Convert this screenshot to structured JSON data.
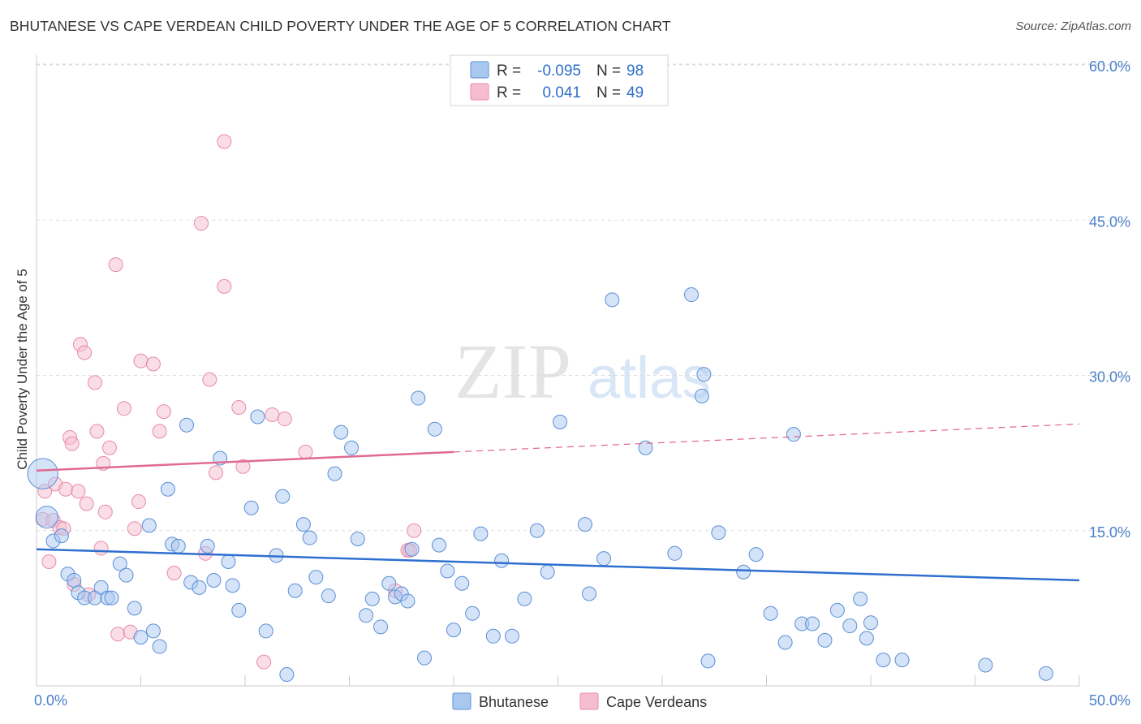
{
  "header": {
    "title": "BHUTANESE VS CAPE VERDEAN CHILD POVERTY UNDER THE AGE OF 5 CORRELATION CHART",
    "source": "Source: ZipAtlas.com"
  },
  "watermark": {
    "zip": "ZIP",
    "atlas": "atlas"
  },
  "legend": {
    "rows": [
      {
        "r_label": "R =",
        "r_value": "-0.095",
        "n_label": "N =",
        "n_value": "98"
      },
      {
        "r_label": "R =",
        "r_value": "0.041",
        "n_label": "N =",
        "n_value": "49"
      }
    ]
  },
  "bottom_legend": {
    "series1": "Bhutanese",
    "series2": "Cape Verdeans"
  },
  "colors": {
    "blue_fill": "#a9c8ef",
    "blue_stroke": "#5b8fd6",
    "blue_line": "#2e6fcf",
    "pink_fill": "#f6bdd0",
    "pink_stroke": "#e88aaa",
    "pink_line": "#e06a93",
    "tick": "#4a80c8",
    "grid": "#dddddd"
  },
  "chart_data": {
    "type": "scatter",
    "title": "BHUTANESE VS CAPE VERDEAN CHILD POVERTY UNDER THE AGE OF 5 CORRELATION CHART",
    "xlabel": "",
    "ylabel": "Child Poverty Under the Age of 5",
    "xlim": [
      0,
      50
    ],
    "ylim": [
      0,
      63
    ],
    "x_tick_labels": [
      "0.0%",
      "50.0%"
    ],
    "y_ticks": [
      15,
      30,
      45,
      60
    ],
    "y_tick_labels": [
      "15.0%",
      "30.0%",
      "45.0%",
      "60.0%"
    ],
    "series": [
      {
        "name": "Bhutanese",
        "r": -0.095,
        "n": 98,
        "trend": {
          "x0": 0,
          "y0": 13.2,
          "x1": 50,
          "y1": 10.2
        },
        "points": [
          [
            0.3,
            20.5,
            2.2
          ],
          [
            0.5,
            16.3,
            1.6
          ],
          [
            0.8,
            14.0,
            1
          ],
          [
            1.2,
            14.5,
            1
          ],
          [
            1.5,
            10.8,
            1
          ],
          [
            1.8,
            10.2,
            1
          ],
          [
            2.0,
            9.0,
            1
          ],
          [
            2.3,
            8.5,
            1
          ],
          [
            2.8,
            8.5,
            1
          ],
          [
            3.1,
            9.5,
            1
          ],
          [
            3.4,
            8.5,
            1
          ],
          [
            3.6,
            8.5,
            1
          ],
          [
            4.0,
            11.8,
            1
          ],
          [
            4.3,
            10.7,
            1
          ],
          [
            4.7,
            7.5,
            1
          ],
          [
            5.0,
            4.7,
            1
          ],
          [
            5.4,
            15.5,
            1
          ],
          [
            5.6,
            5.3,
            1
          ],
          [
            5.9,
            3.8,
            1
          ],
          [
            6.3,
            19.0,
            1
          ],
          [
            6.5,
            13.7,
            1
          ],
          [
            6.8,
            13.5,
            1
          ],
          [
            7.2,
            25.2,
            1
          ],
          [
            7.4,
            10.0,
            1
          ],
          [
            7.8,
            9.5,
            1
          ],
          [
            8.2,
            13.5,
            1
          ],
          [
            8.5,
            10.2,
            1
          ],
          [
            8.8,
            22.0,
            1
          ],
          [
            9.2,
            12.0,
            1
          ],
          [
            9.4,
            9.7,
            1
          ],
          [
            9.7,
            7.3,
            1
          ],
          [
            10.3,
            17.2,
            1
          ],
          [
            10.6,
            26.0,
            1
          ],
          [
            11.0,
            5.3,
            1
          ],
          [
            11.5,
            12.6,
            1
          ],
          [
            11.8,
            18.3,
            1
          ],
          [
            12.0,
            1.1,
            1
          ],
          [
            12.4,
            9.2,
            1
          ],
          [
            12.8,
            15.6,
            1
          ],
          [
            13.1,
            14.3,
            1
          ],
          [
            13.4,
            10.5,
            1
          ],
          [
            14.0,
            8.7,
            1
          ],
          [
            14.3,
            20.5,
            1
          ],
          [
            14.6,
            24.5,
            1
          ],
          [
            15.1,
            23.0,
            1
          ],
          [
            15.4,
            14.2,
            1
          ],
          [
            15.8,
            6.8,
            1
          ],
          [
            16.1,
            8.4,
            1
          ],
          [
            16.5,
            5.7,
            1
          ],
          [
            16.9,
            9.9,
            1
          ],
          [
            17.2,
            8.6,
            1
          ],
          [
            17.5,
            8.9,
            1
          ],
          [
            17.8,
            8.2,
            1
          ],
          [
            18.0,
            13.2,
            1
          ],
          [
            18.3,
            27.8,
            1
          ],
          [
            18.6,
            2.7,
            1
          ],
          [
            19.1,
            24.8,
            1
          ],
          [
            19.3,
            13.6,
            1
          ],
          [
            19.7,
            11.1,
            1
          ],
          [
            20.0,
            5.4,
            1
          ],
          [
            20.4,
            9.9,
            1
          ],
          [
            20.9,
            7.0,
            1
          ],
          [
            21.3,
            14.7,
            1
          ],
          [
            21.9,
            4.8,
            1
          ],
          [
            22.3,
            12.1,
            1
          ],
          [
            22.8,
            4.8,
            1
          ],
          [
            23.4,
            8.4,
            1
          ],
          [
            24.0,
            15.0,
            1
          ],
          [
            24.5,
            11.0,
            1
          ],
          [
            25.1,
            25.5,
            1
          ],
          [
            26.3,
            15.6,
            1
          ],
          [
            26.5,
            8.9,
            1
          ],
          [
            27.2,
            12.3,
            1
          ],
          [
            27.6,
            37.3,
            1
          ],
          [
            29.2,
            23.0,
            1
          ],
          [
            30.6,
            12.8,
            1
          ],
          [
            31.4,
            37.8,
            1
          ],
          [
            31.9,
            28.0,
            1
          ],
          [
            32.0,
            30.1,
            1
          ],
          [
            32.2,
            2.4,
            1
          ],
          [
            32.7,
            14.8,
            1
          ],
          [
            33.9,
            11.0,
            1
          ],
          [
            34.5,
            12.7,
            1
          ],
          [
            35.2,
            7.0,
            1
          ],
          [
            35.9,
            4.2,
            1
          ],
          [
            36.3,
            24.3,
            1
          ],
          [
            36.7,
            6.0,
            1
          ],
          [
            37.2,
            6.0,
            1
          ],
          [
            37.8,
            4.4,
            1
          ],
          [
            38.4,
            7.3,
            1
          ],
          [
            39.0,
            5.8,
            1
          ],
          [
            39.5,
            8.4,
            1
          ],
          [
            39.8,
            4.6,
            1
          ],
          [
            40.0,
            6.1,
            1
          ],
          [
            40.6,
            2.5,
            1
          ],
          [
            41.5,
            2.5,
            1
          ],
          [
            45.5,
            2.0,
            1
          ],
          [
            48.4,
            1.2,
            1
          ]
        ]
      },
      {
        "name": "Cape Verdeans",
        "r": 0.041,
        "n": 49,
        "trend": {
          "x0": 0,
          "y0": 20.8,
          "x1": 50,
          "y1": 25.3,
          "solid_until": 20
        },
        "points": [
          [
            0.3,
            16.1,
            1
          ],
          [
            0.4,
            18.8,
            1
          ],
          [
            0.6,
            12.0,
            1
          ],
          [
            0.8,
            16.0,
            1
          ],
          [
            0.9,
            19.5,
            1
          ],
          [
            1.1,
            15.3,
            1
          ],
          [
            1.3,
            15.2,
            1
          ],
          [
            1.4,
            19.0,
            1
          ],
          [
            1.6,
            24.0,
            1
          ],
          [
            1.7,
            23.4,
            1
          ],
          [
            1.8,
            9.8,
            1
          ],
          [
            2.0,
            18.8,
            1
          ],
          [
            2.1,
            33.0,
            1
          ],
          [
            2.3,
            32.2,
            1
          ],
          [
            2.4,
            17.6,
            1
          ],
          [
            2.5,
            8.8,
            1
          ],
          [
            2.8,
            29.3,
            1
          ],
          [
            2.9,
            24.6,
            1
          ],
          [
            3.1,
            13.3,
            1
          ],
          [
            3.2,
            21.5,
            1
          ],
          [
            3.3,
            16.8,
            1
          ],
          [
            3.5,
            23.0,
            1
          ],
          [
            3.8,
            40.7,
            1
          ],
          [
            3.9,
            5.0,
            1
          ],
          [
            4.2,
            26.8,
            1
          ],
          [
            4.5,
            5.2,
            1
          ],
          [
            4.7,
            15.2,
            1
          ],
          [
            4.9,
            17.8,
            1
          ],
          [
            5.0,
            31.4,
            1
          ],
          [
            5.6,
            31.1,
            1
          ],
          [
            5.9,
            24.6,
            1
          ],
          [
            6.1,
            26.5,
            1
          ],
          [
            6.6,
            10.9,
            1
          ],
          [
            7.9,
            44.7,
            1
          ],
          [
            8.1,
            12.8,
            1
          ],
          [
            8.3,
            29.6,
            1
          ],
          [
            8.6,
            20.6,
            1
          ],
          [
            9.0,
            52.6,
            1
          ],
          [
            9.0,
            38.6,
            1
          ],
          [
            9.7,
            26.9,
            1
          ],
          [
            9.9,
            21.2,
            1
          ],
          [
            10.9,
            2.3,
            1
          ],
          [
            11.3,
            26.2,
            1
          ],
          [
            11.9,
            25.8,
            1
          ],
          [
            12.9,
            22.6,
            1
          ],
          [
            17.2,
            9.2,
            1
          ],
          [
            17.8,
            13.1,
            1
          ],
          [
            17.9,
            13.1,
            1
          ],
          [
            18.1,
            15.0,
            1
          ]
        ]
      }
    ]
  }
}
